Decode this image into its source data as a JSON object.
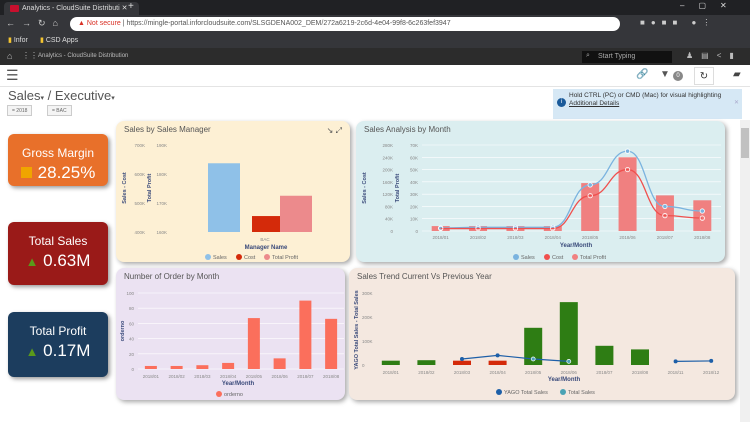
{
  "browser": {
    "tab_title": "Analytics - CloudSuite Distributi",
    "not_secure": "Not secure",
    "url": "https://mingle-portal.inforcloudsuite.com/SLSGDENA002_DEM/272a6219-2c6d-4e04-99f8-6c263fef3947",
    "bookmarks": [
      "Infor",
      "CSD Apps"
    ]
  },
  "app": {
    "title": "Analytics - CloudSuite Distribution",
    "search_placeholder": "Start Typing",
    "filter_count": "0"
  },
  "breadcrumb": {
    "sales": "Sales",
    "sep": "/",
    "executive": "Executive",
    "chips": [
      "= 2018",
      "= BAC"
    ]
  },
  "info": {
    "text": "Hold CTRL (PC) or CMD (Mac) for visual highlighting",
    "link": "Additional Details"
  },
  "kpis": [
    {
      "title": "Gross Margin",
      "value": "28.25%",
      "color": "#e8702a"
    },
    {
      "title": "Total Sales",
      "value": "0.63M",
      "color": "#9a1a18"
    },
    {
      "title": "Total Profit",
      "value": "0.17M",
      "color": "#1c3d5e"
    }
  ],
  "chart_data": [
    {
      "type": "bar",
      "title": "Sales by Sales Manager",
      "categories": [
        "BAC"
      ],
      "xlabel": "Manager Name",
      "ylabel": "Sales - Cost",
      "y2label": "Total Profit",
      "ylim": [
        400000,
        700000
      ],
      "y2lim": [
        160000,
        190000
      ],
      "yticks": [
        "400K",
        "500K",
        "600K",
        "700K"
      ],
      "y2ticks": [
        "160K",
        "170K",
        "180K",
        "190K"
      ],
      "series": [
        {
          "name": "Sales",
          "values": [
            637000
          ],
          "color": "#8fc1e8",
          "axis": "left"
        },
        {
          "name": "Cost",
          "values": [
            455000
          ],
          "color": "#d42a0a",
          "axis": "left"
        },
        {
          "name": "Total Profit",
          "values": [
            172500
          ],
          "color": "#ec8a8c",
          "axis": "right"
        }
      ]
    },
    {
      "type": "bar",
      "title": "Sales Analysis by Month",
      "categories": [
        "2018/01",
        "2018/02",
        "2018/03",
        "2018/04",
        "2018/05",
        "2018/06",
        "2018/07",
        "2018/08"
      ],
      "xlabel": "Year/Month",
      "ylabel": "Sales - Cost",
      "y2label": "Total Profit",
      "ylim": [
        0,
        280000
      ],
      "y2lim": [
        0,
        70000
      ],
      "yticks": [
        "0",
        "40K",
        "80K",
        "120K",
        "160K",
        "200K",
        "240K",
        "280K"
      ],
      "y2ticks": [
        "0",
        "10K",
        "20K",
        "30K",
        "40K",
        "50K",
        "60K",
        "70K"
      ],
      "series": [
        {
          "name": "Sales",
          "type": "line",
          "values": [
            10000,
            12000,
            12000,
            12000,
            150000,
            260000,
            80000,
            65000
          ],
          "color": "#7ab3df"
        },
        {
          "name": "Cost",
          "type": "line",
          "values": [
            8000,
            8000,
            8000,
            8000,
            115000,
            200000,
            50000,
            42000
          ],
          "color": "#f0504e"
        },
        {
          "name": "Total Profit",
          "type": "bar",
          "values": [
            4000,
            4000,
            4000,
            4000,
            39000,
            60000,
            29000,
            25000
          ],
          "color": "#f08080"
        }
      ]
    },
    {
      "type": "bar",
      "title": "Number of Order by Month",
      "categories": [
        "2018/01",
        "2018/02",
        "2018/03",
        "2018/04",
        "2018/05",
        "2018/06",
        "2018/07",
        "2018/08"
      ],
      "xlabel": "Year/Month",
      "ylabel": "orderno",
      "ylim": [
        0,
        100
      ],
      "yticks": [
        "0",
        "20",
        "40",
        "60",
        "80",
        "100"
      ],
      "series": [
        {
          "name": "orderno",
          "values": [
            4,
            4,
            5,
            8,
            67,
            14,
            90,
            66
          ],
          "color": "#fb6f5c"
        }
      ]
    },
    {
      "type": "bar",
      "title": "Sales Trend Current Vs Previous Year",
      "categories": [
        "2018/01",
        "2018/02",
        "2018/03",
        "2018/04",
        "2018/05",
        "2018/06",
        "2018/07",
        "2018/08",
        "2018/11",
        "2018/12"
      ],
      "xlabel": "Year/Month",
      "ylabel": "YAGO Total Sales - Total Sales",
      "ylim": [
        0,
        300000
      ],
      "yticks": [
        "0",
        "100K",
        "200K",
        "300K"
      ],
      "series": [
        {
          "name": "Total Sales",
          "type": "bar",
          "values": [
            18000,
            20000,
            18000,
            18000,
            155000,
            262000,
            80000,
            65000,
            null,
            null
          ],
          "colors": [
            "#2e7d14",
            "#2e7d14",
            "#d42a0a",
            "#d42a0a",
            "#2e7d14",
            "#2e7d14",
            "#2e7d14",
            "#2e7d14",
            null,
            null
          ],
          "legend_color": "#4aa3b5"
        },
        {
          "name": "YAGO Total Sales",
          "type": "line",
          "values": [
            null,
            null,
            25000,
            40000,
            25000,
            15000,
            null,
            null,
            15000,
            17000
          ],
          "color": "#1d5fa8"
        }
      ]
    }
  ]
}
